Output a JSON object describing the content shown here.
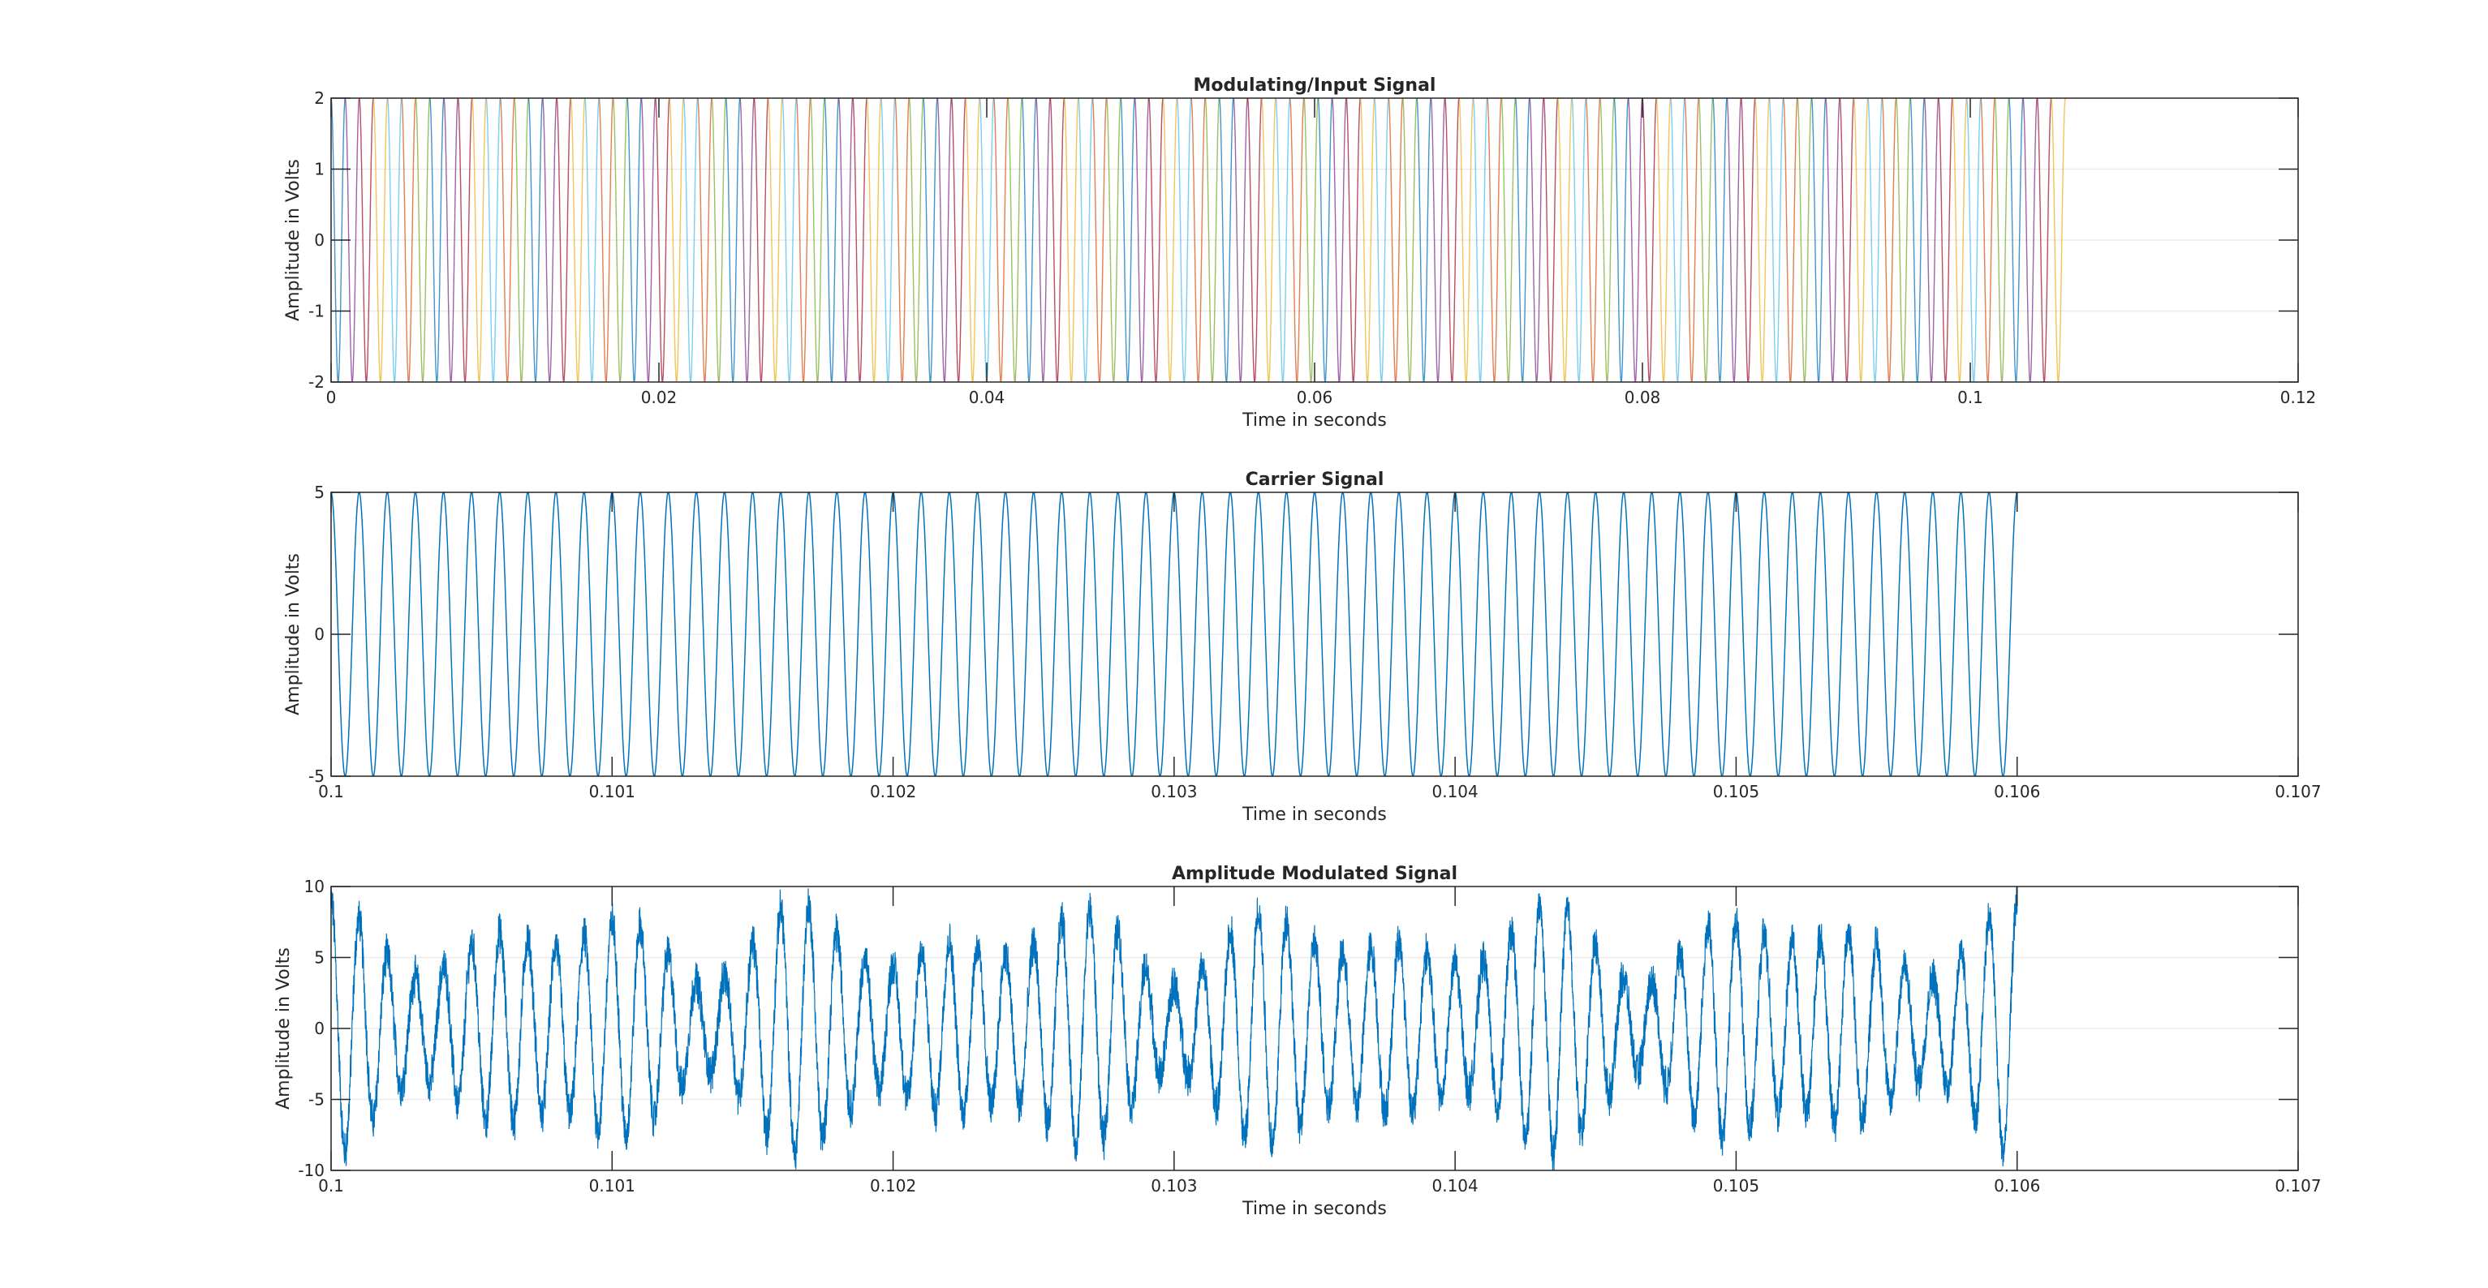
{
  "chart_data": [
    {
      "type": "line",
      "title": "Modulating/Input Signal",
      "xlabel": "Time in seconds",
      "ylabel": "Amplitude in Volts",
      "xlim": [
        0,
        0.12
      ],
      "ylim": [
        -2,
        2
      ],
      "xticks": [
        0,
        0.02,
        0.04,
        0.06,
        0.08,
        0.1,
        0.12
      ],
      "xtick_labels": [
        "0",
        "0.02",
        "0.04",
        "0.06",
        "0.08",
        "0.1",
        "0.12"
      ],
      "yticks": [
        -2,
        -1,
        0,
        1,
        2
      ],
      "ytick_labels": [
        "-2",
        "-1",
        "0",
        "1",
        "2"
      ],
      "grid": "y",
      "signal": {
        "kind": "sinusoid",
        "amplitude": 2,
        "cycles": 123,
        "x_start": 0,
        "x_end": 0.1058,
        "series_count": 7,
        "series_colors": [
          "#0072BD",
          "#D95319",
          "#EDB120",
          "#7E2F8E",
          "#77AC30",
          "#4DBEEE",
          "#A2142F"
        ]
      }
    },
    {
      "type": "line",
      "title": "Carrier Signal",
      "xlabel": "Time in seconds",
      "ylabel": "Amplitude in Volts",
      "xlim": [
        0.1,
        0.107
      ],
      "ylim": [
        -5,
        5
      ],
      "xticks": [
        0.1,
        0.101,
        0.102,
        0.103,
        0.104,
        0.105,
        0.106,
        0.107
      ],
      "xtick_labels": [
        "0.1",
        "0.101",
        "0.102",
        "0.103",
        "0.104",
        "0.105",
        "0.106",
        "0.107"
      ],
      "yticks": [
        -5,
        0,
        5
      ],
      "ytick_labels": [
        "-5",
        "0",
        "5"
      ],
      "grid": "y",
      "signal": {
        "kind": "cosine",
        "amplitude": 5,
        "frequency_hz": 10000,
        "x_start": 0.1,
        "x_end": 0.106,
        "color": "#0072BD"
      }
    },
    {
      "type": "line",
      "title": "Amplitude Modulated Signal",
      "xlabel": "Time in seconds",
      "ylabel": "Amplitude in Volts",
      "xlim": [
        0.1,
        0.107
      ],
      "ylim": [
        -10,
        10
      ],
      "xticks": [
        0.1,
        0.101,
        0.102,
        0.103,
        0.104,
        0.105,
        0.106,
        0.107
      ],
      "xtick_labels": [
        "0.1",
        "0.101",
        "0.102",
        "0.103",
        "0.104",
        "0.105",
        "0.106",
        "0.107"
      ],
      "yticks": [
        -10,
        -5,
        0,
        5,
        10
      ],
      "ytick_labels": [
        "-10",
        "-5",
        "0",
        "5",
        "10"
      ],
      "grid": "y",
      "signal": {
        "kind": "am_noisy",
        "carrier_amplitude": 5,
        "carrier_frequency_hz": 10000,
        "envelope_period_s": 0.001,
        "envelope_min": 3,
        "envelope_max": 9,
        "noise_amplitude": 1.2,
        "x_start": 0.1,
        "x_end": 0.106,
        "color": "#0072BD"
      }
    }
  ]
}
